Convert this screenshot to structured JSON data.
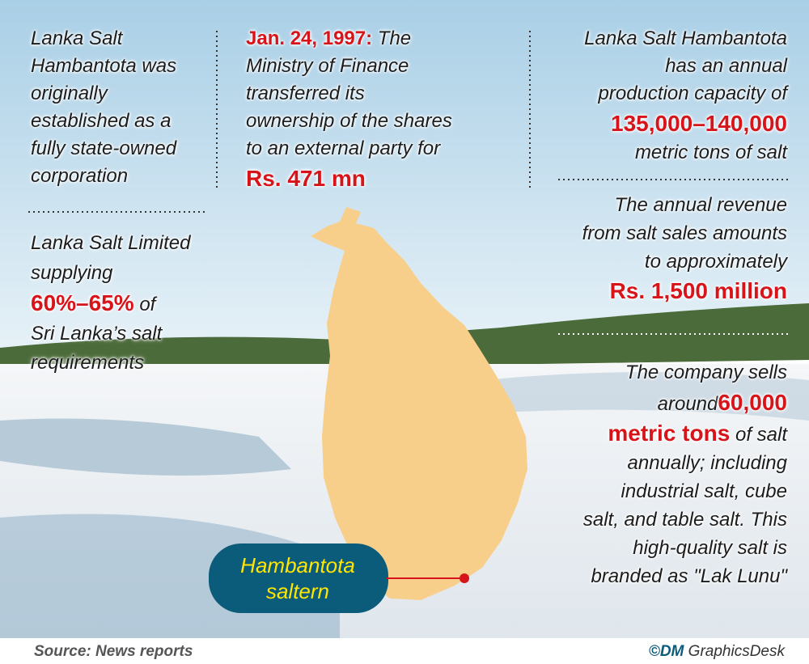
{
  "left_top": {
    "lines": [
      "Lanka Salt",
      "Hambantota was",
      "originally",
      "established as a",
      "fully state-owned",
      "corporation"
    ]
  },
  "center_top": {
    "date": "Jan. 24, 1997:",
    "lines": [
      "The",
      "Ministry of Finance",
      "transferred its",
      "ownership of the shares",
      "to an external party for"
    ],
    "amount": "Rs. 471 mn"
  },
  "left_bottom": {
    "lines_before": [
      "Lanka Salt Limited",
      "supplying"
    ],
    "highlight": "60%–65%",
    "after": "of",
    "lines_after": [
      "Sri Lanka’s salt",
      "requirements"
    ]
  },
  "right_top": {
    "lines": [
      "Lanka Salt Hambantota",
      "has an annual",
      "production capacity of"
    ],
    "highlight": "135,000–140,000",
    "line_after": "metric tons of salt"
  },
  "right_middle": {
    "lines": [
      "The annual revenue",
      "from salt sales amounts",
      "to approximately"
    ],
    "highlight": "Rs. 1,500 million"
  },
  "right_bottom": {
    "lines_before": [
      "The company sells"
    ],
    "before": "around",
    "highlight_1": "60,000",
    "highlight_2": "metric tons",
    "after": "of salt",
    "lines_after": [
      "annually; including",
      "industrial salt, cube",
      "salt, and table salt. This",
      "high-quality salt is",
      "branded as \"Lak Lunu\""
    ]
  },
  "map_label": {
    "lines": [
      "Hambantota",
      "saltern"
    ]
  },
  "footer": {
    "source": "Source: News reports",
    "credit_brand": "©DM",
    "credit_desk": "GraphicsDesk"
  }
}
